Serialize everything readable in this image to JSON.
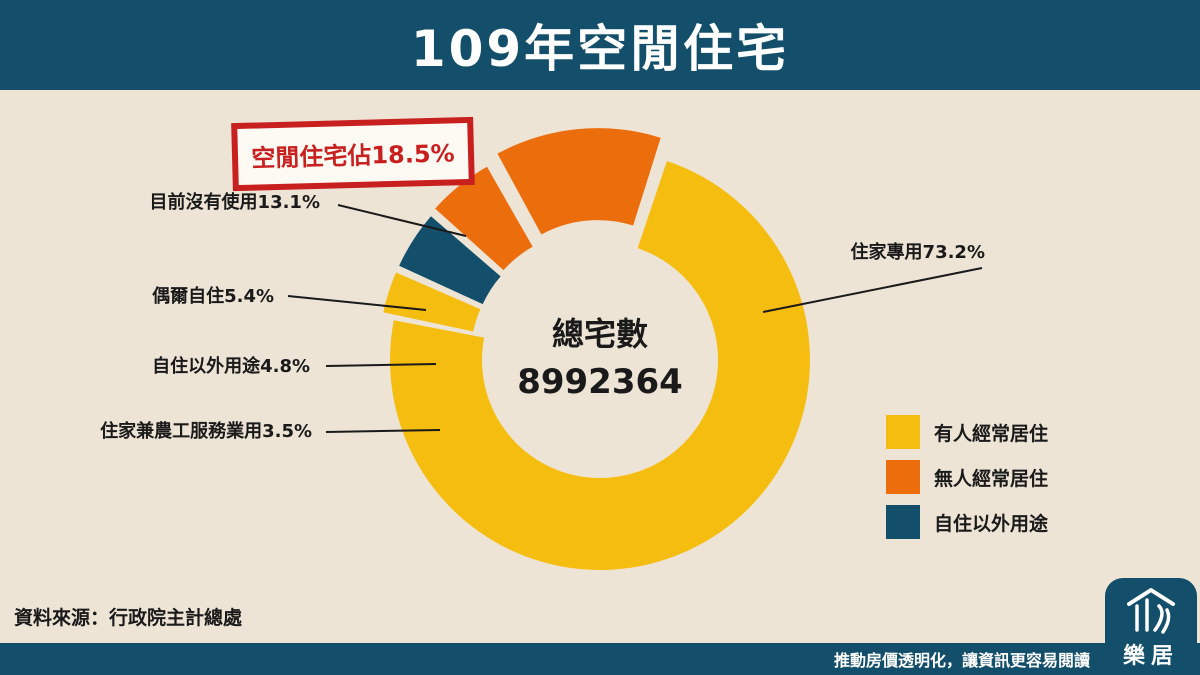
{
  "title": "109年空閒住宅",
  "callout": "空閒住宅佔18.5%",
  "center_label": "總宅數",
  "center_value": "8992364",
  "chart_data": {
    "type": "pie",
    "donut": true,
    "title": "109年空閒住宅",
    "total_label": "總宅數",
    "total": 8992364,
    "slices": [
      {
        "label": "住家專用",
        "value": 73.2,
        "category": "有人經常居住",
        "display": "住家專用73.2%"
      },
      {
        "label": "住家兼農工服務業用",
        "value": 3.5,
        "category": "有人經常居住",
        "display": "住家兼農工服務業用3.5%"
      },
      {
        "label": "自住以外用途",
        "value": 4.8,
        "category": "自住以外用途",
        "display": "自住以外用途4.8%"
      },
      {
        "label": "偶爾自住",
        "value": 5.4,
        "category": "無人經常居住",
        "display": "偶爾自住5.4%"
      },
      {
        "label": "目前沒有使用",
        "value": 13.1,
        "category": "無人經常居住",
        "display": "目前沒有使用13.1%"
      }
    ],
    "highlight": "空閒住宅佔18.5%",
    "legend": [
      {
        "label": "有人經常居住",
        "color": "#f6bd11"
      },
      {
        "label": "無人經常居住",
        "color": "#ec6d0c"
      },
      {
        "label": "自住以外用途",
        "color": "#134f6b"
      }
    ],
    "legend_position": "bottom-right"
  },
  "legend": [
    {
      "label": "有人經常居住",
      "color": "#f6bd11"
    },
    {
      "label": "無人經常居住",
      "color": "#ec6d0c"
    },
    {
      "label": "自住以外用途",
      "color": "#134f6b"
    }
  ],
  "source": "資料來源：行政院主計總處",
  "slogan": "推動房價透明化，讓資訊更容易閱讀",
  "logo_text": "樂居",
  "colors": {
    "header": "#134f6b",
    "background": "#ede4d6",
    "callout_red": "#c8201f"
  }
}
